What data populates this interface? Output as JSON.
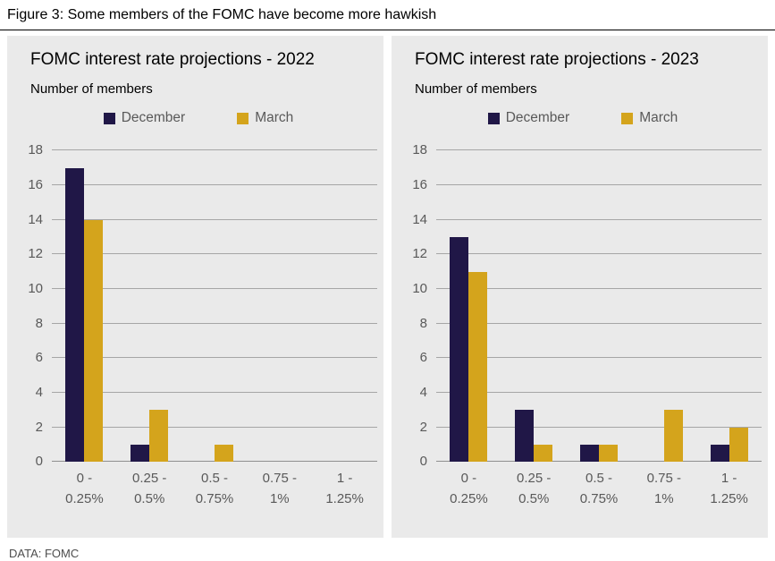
{
  "figure_title": "Figure 3: Some members of the FOMC have become more hawkish",
  "footer": {
    "source": "DATA: FOMC"
  },
  "colors": {
    "december": "#201747",
    "march": "#d4a41c",
    "panel_background": "#eaeaea",
    "gridline": "#a6a6a6",
    "axis_text": "#595959"
  },
  "chart_data": [
    {
      "type": "bar",
      "title": "FOMC interest rate projections - 2022",
      "subtitle": "Number of members",
      "categories": [
        "0 - 0.25%",
        "0.25 - 0.5%",
        "0.5 - 0.75%",
        "0.75 - 1%",
        "1 - 1.25%"
      ],
      "series": [
        {
          "name": "December",
          "color": "#201747",
          "values": [
            17,
            1,
            0,
            0,
            0
          ]
        },
        {
          "name": "March",
          "color": "#d4a41c",
          "values": [
            14,
            3,
            1,
            0,
            0
          ]
        }
      ],
      "ylabel": "Number of members",
      "ylim": [
        0,
        18
      ],
      "ytick_step": 2,
      "grid": true,
      "legend_position": "top"
    },
    {
      "type": "bar",
      "title": "FOMC interest rate projections - 2023",
      "subtitle": "Number of members",
      "categories": [
        "0 - 0.25%",
        "0.25 - 0.5%",
        "0.5 - 0.75%",
        "0.75 - 1%",
        "1 - 1.25%"
      ],
      "series": [
        {
          "name": "December",
          "color": "#201747",
          "values": [
            13,
            3,
            1,
            0,
            1
          ]
        },
        {
          "name": "March",
          "color": "#d4a41c",
          "values": [
            11,
            1,
            1,
            3,
            2
          ]
        }
      ],
      "ylabel": "Number of members",
      "ylim": [
        0,
        18
      ],
      "ytick_step": 2,
      "grid": true,
      "legend_position": "top"
    }
  ]
}
